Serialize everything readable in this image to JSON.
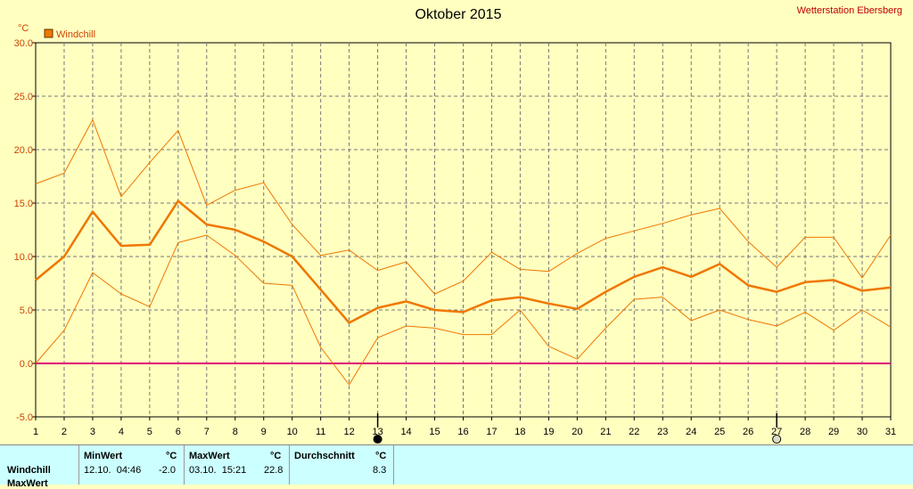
{
  "chart_data": {
    "type": "line",
    "title": "Oktober 2015",
    "station": "Wetterstation Ebersberg",
    "unit": "°C",
    "legend": [
      {
        "name": "Windchill",
        "color": "#ee7700"
      }
    ],
    "x": [
      1,
      2,
      3,
      4,
      5,
      6,
      7,
      8,
      9,
      10,
      11,
      12,
      13,
      14,
      15,
      16,
      17,
      18,
      19,
      20,
      21,
      22,
      23,
      24,
      25,
      26,
      27,
      28,
      29,
      30,
      31
    ],
    "x_tick_labels": [
      "1",
      "2",
      "3",
      "4",
      "5",
      "6",
      "7",
      "8",
      "9",
      "10",
      "11",
      "12",
      "13",
      "14",
      "15",
      "16",
      "17",
      "18",
      "19",
      "20",
      "21",
      "22",
      "23",
      "24",
      "25",
      "26",
      "27",
      "28",
      "29",
      "30",
      "31"
    ],
    "ylim": [
      -5,
      30
    ],
    "y_tick_labels": [
      "30.0",
      "25.0",
      "20.0",
      "15.0",
      "10.0",
      "5.0",
      "0.0",
      "-5.0"
    ],
    "grid": true,
    "series": [
      {
        "name": "Windchill",
        "role": "max",
        "values": [
          16.8,
          17.8,
          22.8,
          15.6,
          18.8,
          21.8,
          14.8,
          16.2,
          16.9,
          13.0,
          10.1,
          10.6,
          8.7,
          9.5,
          6.5,
          7.7,
          10.4,
          8.8,
          8.6,
          10.3,
          11.7,
          12.4,
          13.1,
          13.9,
          14.5,
          11.4,
          9.0,
          11.8,
          11.8,
          8.0,
          12.0
        ]
      },
      {
        "name": "Windchill",
        "role": "avg",
        "values": [
          7.8,
          10.0,
          14.2,
          11.0,
          11.1,
          15.2,
          13.0,
          12.5,
          11.4,
          10.0,
          6.9,
          3.8,
          5.2,
          5.8,
          5.0,
          4.8,
          5.9,
          6.2,
          5.6,
          5.1,
          6.7,
          8.1,
          9.0,
          8.1,
          9.3,
          7.3,
          6.7,
          7.6,
          7.8,
          6.8,
          7.1
        ]
      },
      {
        "name": "Windchill",
        "role": "min",
        "values": [
          0.0,
          3.1,
          8.5,
          6.5,
          5.3,
          11.3,
          12.0,
          10.1,
          7.5,
          7.3,
          1.5,
          -2.0,
          2.4,
          3.5,
          3.3,
          2.7,
          2.7,
          5.0,
          1.6,
          0.4,
          3.3,
          6.0,
          6.2,
          4.0,
          5.0,
          4.1,
          3.5,
          4.8,
          3.1,
          5.0,
          3.4
        ]
      }
    ],
    "reference_line": {
      "value": 0,
      "color": "#dd0077"
    },
    "moon_markers": [
      {
        "day": 13,
        "phase": "new"
      },
      {
        "day": 27,
        "phase": "full"
      }
    ]
  },
  "stats": {
    "row_label": "Windchill",
    "row2_label": "MaxWert",
    "min_header": "MinWert",
    "max_header": "MaxWert",
    "avg_header": "Durchschnitt",
    "unit": "°C",
    "min_datetime": "12.10.  04:46",
    "min_value": "-2.0",
    "max_datetime": "03.10.  15:21",
    "max_value": "22.8",
    "avg_value": "8.3"
  }
}
